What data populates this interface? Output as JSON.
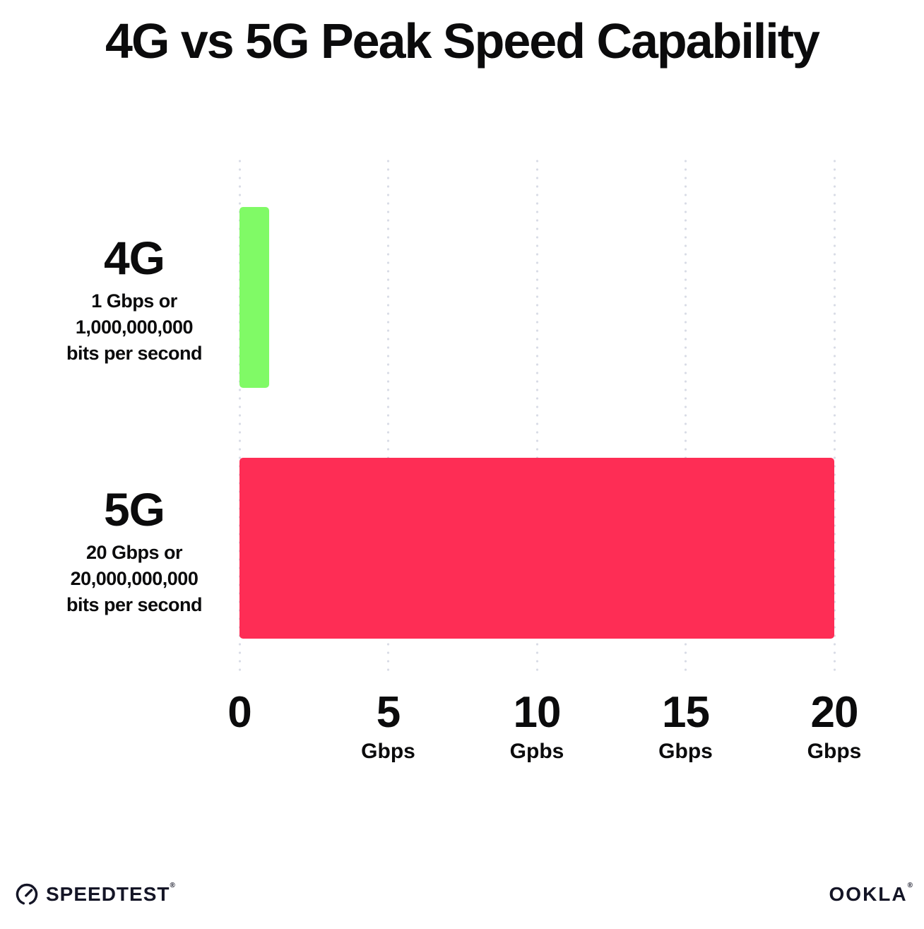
{
  "title": "4G vs 5G Peak Speed Capability",
  "chart_data": {
    "type": "bar",
    "orientation": "horizontal",
    "title": "4G vs 5G Peak Speed Capability",
    "categories": [
      "4G",
      "5G"
    ],
    "values": [
      1,
      20
    ],
    "value_unit": "Gbps",
    "xlim": [
      0,
      20
    ],
    "grid": "dotted-vertical",
    "rows": [
      {
        "label": "4G",
        "sublabel_lines": [
          "1 Gbps or",
          "1,000,000,000",
          "bits per second"
        ],
        "value": 1,
        "color": "#80FA66"
      },
      {
        "label": "5G",
        "sublabel_lines": [
          "20 Gbps or",
          "20,000,000,000",
          "bits per second"
        ],
        "value": 20,
        "color": "#FE2D55"
      }
    ],
    "x_axis": {
      "range": [
        0,
        20
      ],
      "ticks": [
        {
          "value": 0,
          "label": "0",
          "unit": ""
        },
        {
          "value": 5,
          "label": "5",
          "unit": "Gbps"
        },
        {
          "value": 10,
          "label": "10",
          "unit": "Gpbs"
        },
        {
          "value": 15,
          "label": "15",
          "unit": "Gbps"
        },
        {
          "value": 20,
          "label": "20",
          "unit": "Gbps"
        }
      ]
    }
  },
  "footer": {
    "speedtest_label": "SPEEDTEST",
    "speedtest_mark": "®",
    "ookla_label": "OOKLA",
    "ookla_mark": "®"
  },
  "colors": {
    "bar_4g": "#80FA66",
    "bar_5g": "#FE2D55",
    "gridline_dots": "#d9dce6",
    "text": "#0b0b0c",
    "background": "#ffffff"
  }
}
